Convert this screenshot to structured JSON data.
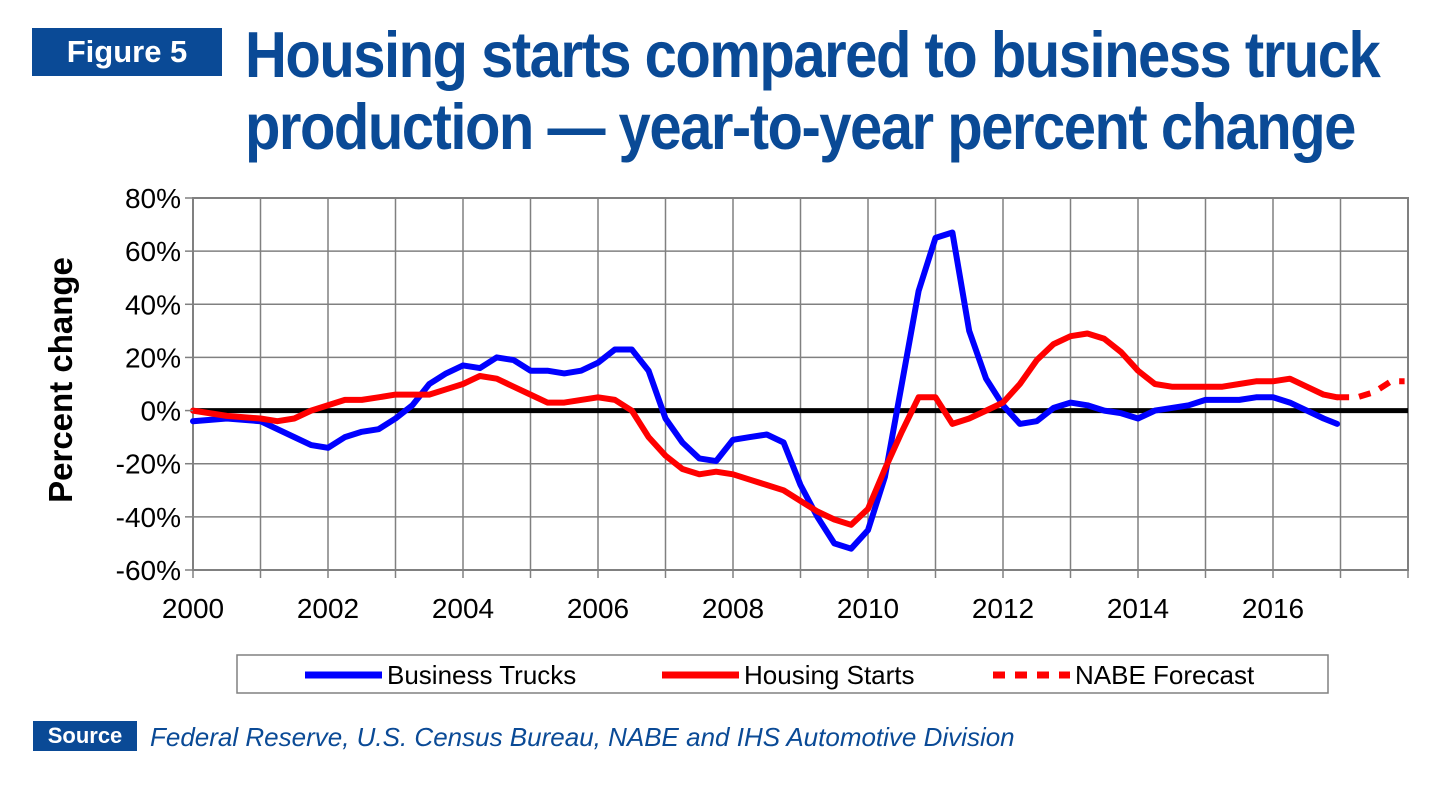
{
  "header": {
    "figure_label": "Figure 5",
    "title": "Housing starts compared to business truck production — year-to-year percent change"
  },
  "source": {
    "label": "Source",
    "text": "Federal Reserve, U.S. Census Bureau, NABE and IHS Automotive Division"
  },
  "colors": {
    "brand": "#0a4a96",
    "business_trucks": "#0000ff",
    "housing_starts": "#ff0000",
    "nabe_forecast": "#ff0000",
    "zero_line": "#000000"
  },
  "chart_data": {
    "type": "line",
    "title": "",
    "xlabel": "",
    "ylabel": "Percent change",
    "xlim": [
      2000,
      2018
    ],
    "ylim": [
      -60,
      80
    ],
    "x_ticks": [
      2000,
      2002,
      2004,
      2006,
      2008,
      2010,
      2012,
      2014,
      2016
    ],
    "x_tick_labels": [
      "2000",
      "2002",
      "2004",
      "2006",
      "2008",
      "2010",
      "2012",
      "2014",
      "2016"
    ],
    "y_ticks": [
      -60,
      -40,
      -20,
      0,
      20,
      40,
      60,
      80
    ],
    "y_tick_labels": [
      "-60%",
      "-40%",
      "-20%",
      "0%",
      "20%",
      "40%",
      "60%",
      "80%"
    ],
    "grid": true,
    "legend_position": "bottom",
    "series": [
      {
        "name": "Business Trucks",
        "style": "solid",
        "x": [
          2000.0,
          2000.5,
          2001.0,
          2001.5,
          2001.75,
          2002.0,
          2002.25,
          2002.5,
          2002.75,
          2003.0,
          2003.25,
          2003.5,
          2003.75,
          2004.0,
          2004.25,
          2004.5,
          2004.75,
          2005.0,
          2005.25,
          2005.5,
          2005.75,
          2006.0,
          2006.25,
          2006.5,
          2006.75,
          2007.0,
          2007.25,
          2007.5,
          2007.75,
          2008.0,
          2008.25,
          2008.5,
          2008.75,
          2009.0,
          2009.25,
          2009.5,
          2009.75,
          2010.0,
          2010.25,
          2010.5,
          2010.75,
          2011.0,
          2011.25,
          2011.5,
          2011.75,
          2012.0,
          2012.25,
          2012.5,
          2012.75,
          2013.0,
          2013.25,
          2013.5,
          2013.75,
          2014.0,
          2014.25,
          2014.5,
          2014.75,
          2015.0,
          2015.25,
          2015.5,
          2015.75,
          2016.0,
          2016.25,
          2016.5,
          2016.75,
          2016.95
        ],
        "values": [
          -4,
          -3,
          -4,
          -10,
          -13,
          -14,
          -10,
          -8,
          -7,
          -3,
          2,
          10,
          14,
          17,
          16,
          20,
          19,
          15,
          15,
          14,
          15,
          18,
          23,
          23,
          15,
          -3,
          -12,
          -18,
          -19,
          -11,
          -10,
          -9,
          -12,
          -28,
          -40,
          -50,
          -52,
          -45,
          -25,
          10,
          45,
          65,
          67,
          30,
          12,
          2,
          -5,
          -4,
          1,
          3,
          2,
          0,
          -1,
          -3,
          0,
          1,
          2,
          4,
          4,
          4,
          5,
          5,
          3,
          0,
          -3,
          -5
        ]
      },
      {
        "name": "Housing Starts",
        "style": "solid",
        "x": [
          2000.0,
          2000.5,
          2001.0,
          2001.25,
          2001.5,
          2001.75,
          2002.0,
          2002.25,
          2002.5,
          2002.75,
          2003.0,
          2003.25,
          2003.5,
          2003.75,
          2004.0,
          2004.25,
          2004.5,
          2004.75,
          2005.0,
          2005.25,
          2005.5,
          2005.75,
          2006.0,
          2006.25,
          2006.5,
          2006.75,
          2007.0,
          2007.25,
          2007.5,
          2007.75,
          2008.0,
          2008.25,
          2008.5,
          2008.75,
          2009.0,
          2009.25,
          2009.5,
          2009.75,
          2010.0,
          2010.25,
          2010.5,
          2010.75,
          2011.0,
          2011.25,
          2011.5,
          2011.75,
          2012.0,
          2012.25,
          2012.5,
          2012.75,
          2013.0,
          2013.25,
          2013.5,
          2013.75,
          2014.0,
          2014.25,
          2014.5,
          2014.75,
          2015.0,
          2015.25,
          2015.5,
          2015.75,
          2016.0,
          2016.25,
          2016.5,
          2016.75,
          2016.95
        ],
        "values": [
          0,
          -2,
          -3,
          -4,
          -3,
          0,
          2,
          4,
          4,
          5,
          6,
          6,
          6,
          8,
          10,
          13,
          12,
          9,
          6,
          3,
          3,
          4,
          5,
          4,
          0,
          -10,
          -17,
          -22,
          -24,
          -23,
          -24,
          -26,
          -28,
          -30,
          -34,
          -38,
          -41,
          -43,
          -37,
          -22,
          -8,
          5,
          5,
          -5,
          -3,
          0,
          3,
          10,
          19,
          25,
          28,
          29,
          27,
          22,
          15,
          10,
          9,
          9,
          9,
          9,
          10,
          11,
          11,
          12,
          9,
          6,
          5
        ]
      },
      {
        "name": "NABE Forecast",
        "style": "dashed",
        "x": [
          2016.95,
          2017.25,
          2017.5,
          2017.75,
          2017.95
        ],
        "values": [
          5,
          5,
          7,
          11,
          11
        ]
      }
    ]
  }
}
